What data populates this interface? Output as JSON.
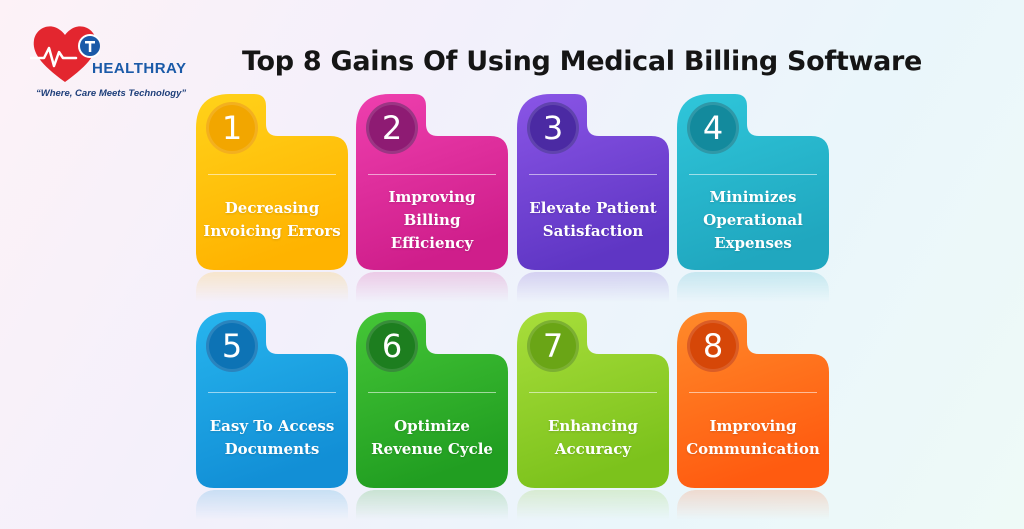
{
  "logo": {
    "brand": "HEALTHRAY",
    "tagline": "“Where, Care Meets Technology”",
    "icon": "heart-pulse-icon"
  },
  "header": {
    "title": "Top 8 Gains Of Using Medical Billing Software"
  },
  "cards": [
    {
      "number": "1",
      "label": "Decreasing\nInvoicing Errors",
      "color_top": "#ffd21a",
      "color_bottom": "#ffb300",
      "circle": "#f2a600"
    },
    {
      "number": "2",
      "label": "Improving\nBilling\nEfficiency",
      "color_top": "#ee3fae",
      "color_bottom": "#cf1e8b",
      "circle": "#8e1b73"
    },
    {
      "number": "3",
      "label": "Elevate Patient\nSatisfaction",
      "color_top": "#8a55e6",
      "color_bottom": "#5f36c4",
      "circle": "#4b2aa3"
    },
    {
      "number": "4",
      "label": "Minimizes\nOperational\nExpenses",
      "color_top": "#2fc6da",
      "color_bottom": "#20a7bf",
      "circle": "#138a9d"
    },
    {
      "number": "5",
      "label": "Easy To Access\nDocuments",
      "color_top": "#27b5ee",
      "color_bottom": "#128fd6",
      "circle": "#0d73b5"
    },
    {
      "number": "6",
      "label": "Optimize\nRevenue Cycle",
      "color_top": "#45c637",
      "color_bottom": "#219e21",
      "circle": "#1d7e1f"
    },
    {
      "number": "7",
      "label": "Enhancing\nAccuracy",
      "color_top": "#a8de3b",
      "color_bottom": "#7cc21c",
      "circle": "#6aa516"
    },
    {
      "number": "8",
      "label": "Improving\nCommunication",
      "color_top": "#ff8a2a",
      "color_bottom": "#ff5b10",
      "circle": "#d64708"
    }
  ]
}
